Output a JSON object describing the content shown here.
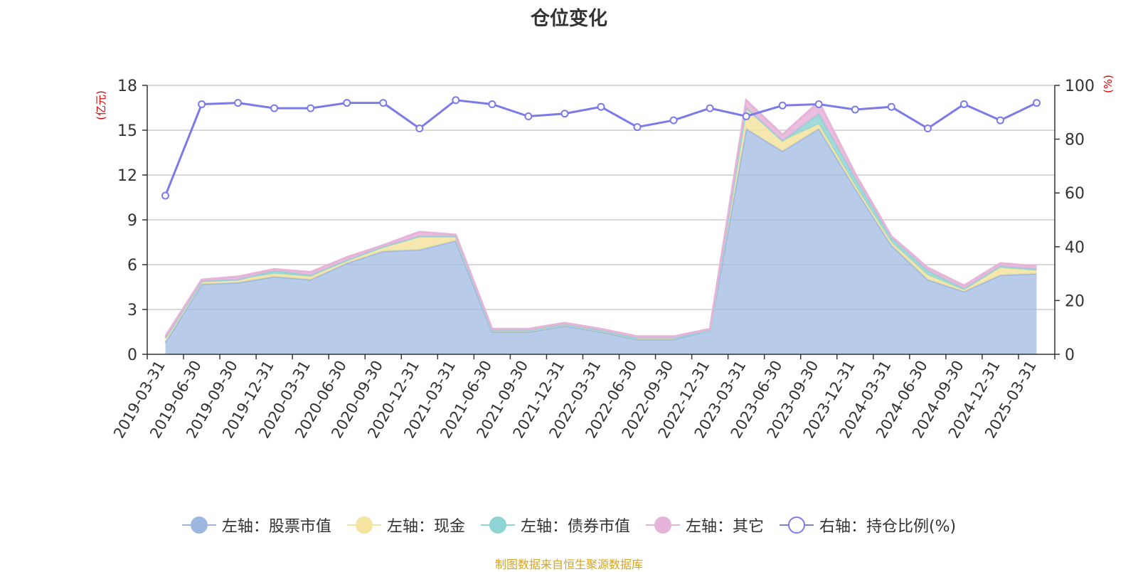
{
  "title": "仓位变化",
  "source": "制图数据来自恒生聚源数据库",
  "chart_data": {
    "type": "area",
    "title": "仓位变化",
    "left_axis": {
      "label": "(亿元)",
      "ylim": [
        0,
        18
      ],
      "ticks": [
        0,
        3,
        6,
        9,
        12,
        15,
        18
      ]
    },
    "right_axis": {
      "label": "(%)",
      "ylim": [
        0,
        100
      ],
      "ticks": [
        0,
        20,
        40,
        60,
        80,
        100
      ]
    },
    "x": [
      "2019-03-31",
      "2019-06-30",
      "2019-09-30",
      "2019-12-31",
      "2020-03-31",
      "2020-06-30",
      "2020-09-30",
      "2020-12-31",
      "2021-03-31",
      "2021-06-30",
      "2021-09-30",
      "2021-12-31",
      "2022-03-31",
      "2022-06-30",
      "2022-09-30",
      "2022-12-31",
      "2023-03-31",
      "2023-06-30",
      "2023-09-30",
      "2023-12-31",
      "2024-03-31",
      "2024-06-30",
      "2024-09-30",
      "2024-12-31",
      "2025-03-31"
    ],
    "stacked_series": [
      {
        "name": "左轴：股票市值",
        "color": "#9db8e0",
        "values": [
          0.8,
          4.7,
          4.8,
          5.2,
          5.0,
          6.1,
          6.9,
          7.0,
          7.6,
          1.5,
          1.5,
          1.9,
          1.5,
          1.0,
          1.0,
          1.6,
          15.1,
          13.6,
          15.1,
          11.1,
          7.3,
          5.0,
          4.2,
          5.3,
          5.4
        ]
      },
      {
        "name": "左轴：现金",
        "color": "#f5e3a0",
        "values": [
          0.3,
          0.2,
          0.2,
          0.2,
          0.2,
          0.2,
          0.3,
          0.9,
          0.3,
          0.1,
          0.1,
          0.1,
          0.1,
          0.1,
          0.1,
          0.0,
          1.4,
          0.7,
          0.3,
          0.2,
          0.2,
          0.3,
          0.1,
          0.5,
          0.2
        ]
      },
      {
        "name": "左轴：债券市值",
        "color": "#8fd4d4",
        "values": [
          0.0,
          0.0,
          0.0,
          0.2,
          0.1,
          0.0,
          0.0,
          0.0,
          0.0,
          0.0,
          0.0,
          0.0,
          0.0,
          0.0,
          0.0,
          0.0,
          0.0,
          0.0,
          0.7,
          0.5,
          0.3,
          0.3,
          0.1,
          0.1,
          0.1
        ]
      },
      {
        "name": "左轴：其它",
        "color": "#e6b3d9",
        "values": [
          0.1,
          0.1,
          0.2,
          0.1,
          0.2,
          0.2,
          0.1,
          0.3,
          0.1,
          0.1,
          0.1,
          0.1,
          0.1,
          0.1,
          0.1,
          0.1,
          0.5,
          0.4,
          0.8,
          0.3,
          0.1,
          0.2,
          0.2,
          0.2,
          0.2
        ]
      }
    ],
    "line_series": {
      "name": "右轴：持仓比例(%)",
      "color": "#7b7be8",
      "values": [
        59,
        93,
        93.5,
        91.5,
        91.5,
        93.5,
        93.5,
        84,
        94.5,
        93,
        88.5,
        89.5,
        92,
        84.5,
        87,
        91.5,
        88.5,
        92.5,
        93,
        91,
        92,
        84,
        93,
        87,
        93.5
      ]
    },
    "grid": true,
    "legend_position": "bottom"
  }
}
